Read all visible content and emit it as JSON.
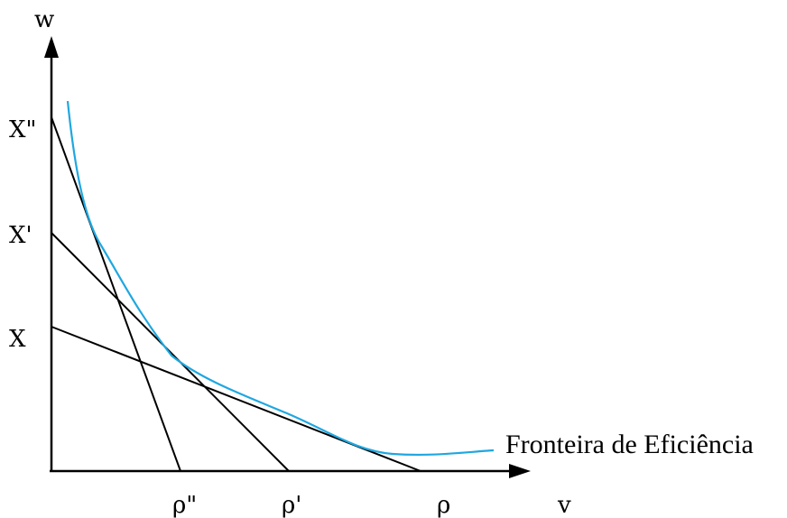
{
  "axes": {
    "y_label": "w",
    "x_label": "v"
  },
  "y_intercepts": [
    "X\"",
    "X'",
    "X"
  ],
  "x_intercepts": [
    "ρ\"",
    "ρ'",
    "ρ"
  ],
  "curve_label": "Fronteira de Eficiência",
  "colors": {
    "axes": "#000000",
    "lines": "#000000",
    "frontier": "#1fa7e0"
  }
}
